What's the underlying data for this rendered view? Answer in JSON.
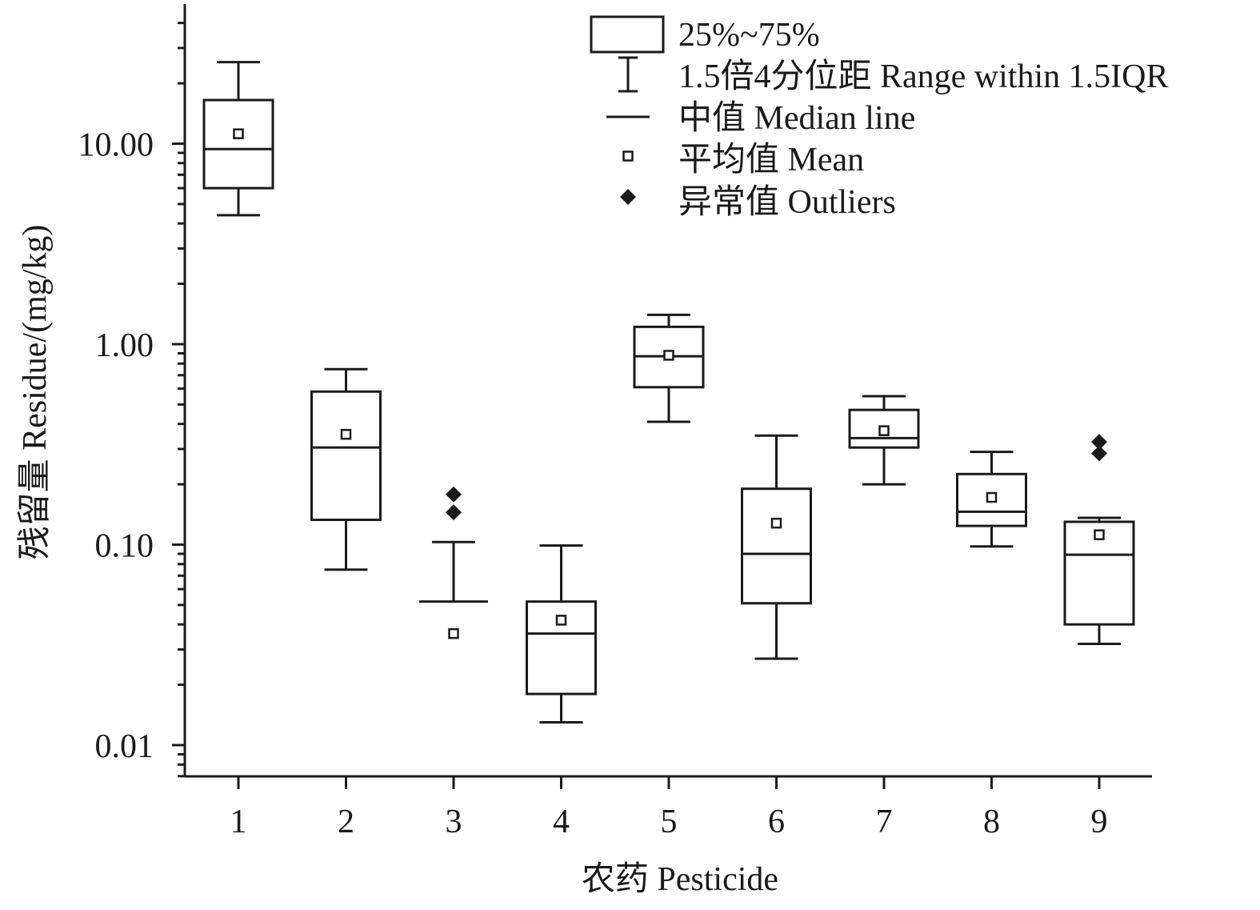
{
  "chart_data": {
    "type": "box",
    "xlabel": "农药 Pesticide",
    "ylabel": "残留量 Residue/(mg/kg)",
    "y_scale": "log",
    "ylim": [
      0.0056,
      50
    ],
    "y_ticks": [
      {
        "value": 0.01,
        "label": "0.01"
      },
      {
        "value": 0.1,
        "label": "0.10"
      },
      {
        "value": 1,
        "label": "1.00"
      },
      {
        "value": 10,
        "label": "10.00"
      }
    ],
    "categories": [
      "1",
      "2",
      "3",
      "4",
      "5",
      "6",
      "7",
      "8",
      "9"
    ],
    "boxes": [
      {
        "category": "1",
        "whisker_low": 4.4,
        "q1": 6.0,
        "median": 9.4,
        "q3": 16.5,
        "whisker_high": 25.5,
        "mean": 11.2,
        "outliers": []
      },
      {
        "category": "2",
        "whisker_low": 0.075,
        "q1": 0.133,
        "median": 0.305,
        "q3": 0.58,
        "whisker_high": 0.75,
        "mean": 0.355,
        "outliers": []
      },
      {
        "category": "3",
        "whisker_low": 0.052,
        "q1": 0.052,
        "median": 0.052,
        "q3": 0.052,
        "whisker_high": 0.103,
        "mean": 0.036,
        "outliers": [
          0.145,
          0.178
        ]
      },
      {
        "category": "4",
        "whisker_low": 0.013,
        "q1": 0.018,
        "median": 0.036,
        "q3": 0.052,
        "whisker_high": 0.099,
        "mean": 0.042,
        "outliers": []
      },
      {
        "category": "5",
        "whisker_low": 0.41,
        "q1": 0.61,
        "median": 0.87,
        "q3": 1.22,
        "whisker_high": 1.4,
        "mean": 0.88,
        "outliers": []
      },
      {
        "category": "6",
        "whisker_low": 0.027,
        "q1": 0.051,
        "median": 0.09,
        "q3": 0.19,
        "whisker_high": 0.35,
        "mean": 0.128,
        "outliers": []
      },
      {
        "category": "7",
        "whisker_low": 0.2,
        "q1": 0.305,
        "median": 0.34,
        "q3": 0.47,
        "whisker_high": 0.55,
        "mean": 0.37,
        "outliers": []
      },
      {
        "category": "8",
        "whisker_low": 0.098,
        "q1": 0.124,
        "median": 0.146,
        "q3": 0.225,
        "whisker_high": 0.29,
        "mean": 0.172,
        "outliers": []
      },
      {
        "category": "9",
        "whisker_low": 0.032,
        "q1": 0.04,
        "median": 0.089,
        "q3": 0.13,
        "whisker_high": 0.136,
        "mean": 0.112,
        "outliers": [
          0.285,
          0.325
        ]
      }
    ],
    "legend": {
      "placement": "top-right",
      "items": [
        {
          "kind": "box",
          "label": "25%~75%"
        },
        {
          "kind": "whisker",
          "label": "1.5倍4分位距 Range within 1.5IQR"
        },
        {
          "kind": "median",
          "label": "中值 Median line"
        },
        {
          "kind": "mean",
          "label": "平均值 Mean"
        },
        {
          "kind": "outlier",
          "label": "异常值 Outliers"
        }
      ]
    },
    "colors": {
      "line": "#1a1a1a",
      "outlier": "#1a1a1a",
      "mean_fill": "#ffffff"
    }
  }
}
